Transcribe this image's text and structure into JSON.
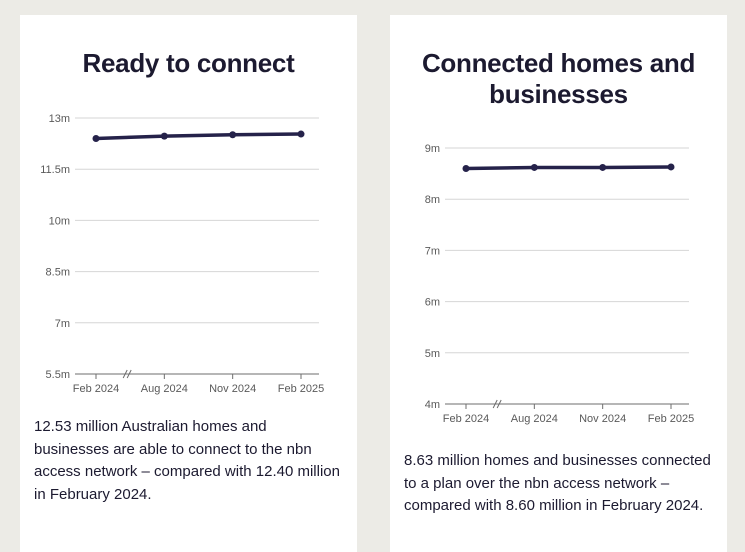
{
  "colors": {
    "background": "#ecebe6",
    "card": "#ffffff",
    "text": "#1c1a30",
    "series": "#25224a",
    "grid": "#d6d6d6"
  },
  "cards": [
    {
      "title": "Ready to connect",
      "description": "12.53 million Australian homes and businesses are able to connect to the nbn access network – compared with 12.40 million in February 2024."
    },
    {
      "title": "Connected homes and businesses",
      "description": "8.63 million homes and businesses connected to a plan over the nbn access network – compared with 8.60 million in February 2024."
    }
  ],
  "chart_data": [
    {
      "type": "line",
      "title": "Ready to connect",
      "categories": [
        "Feb 2024",
        "Aug 2024",
        "Nov 2024",
        "Feb 2025"
      ],
      "series": [
        {
          "name": "Ready to connect",
          "values": [
            12.4,
            12.47,
            12.51,
            12.53
          ]
        }
      ],
      "ylim": [
        5.5,
        13
      ],
      "yticks": [
        5.5,
        7,
        8.5,
        10,
        11.5,
        13
      ],
      "ytick_labels": [
        "5.5m",
        "7m",
        "8.5m",
        "10m",
        "11.5m",
        "13m"
      ],
      "axis_break": true,
      "grid": true
    },
    {
      "type": "line",
      "title": "Connected homes and businesses",
      "categories": [
        "Feb 2024",
        "Aug 2024",
        "Nov 2024",
        "Feb 2025"
      ],
      "series": [
        {
          "name": "Connected homes and businesses",
          "values": [
            8.6,
            8.62,
            8.62,
            8.63
          ]
        }
      ],
      "ylim": [
        4,
        9
      ],
      "yticks": [
        4,
        5,
        6,
        7,
        8,
        9
      ],
      "ytick_labels": [
        "4m",
        "5m",
        "6m",
        "7m",
        "8m",
        "9m"
      ],
      "axis_break": true,
      "grid": true
    }
  ]
}
